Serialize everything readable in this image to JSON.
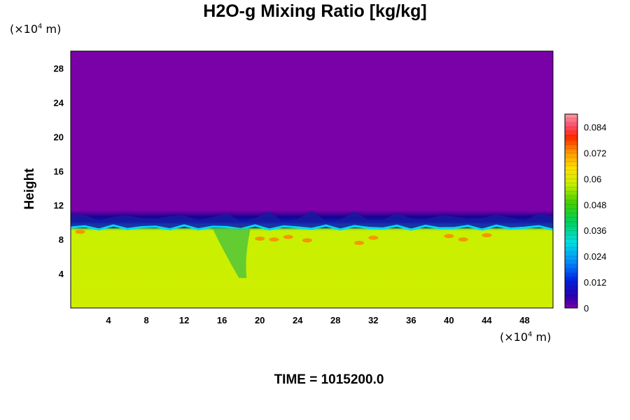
{
  "chart_data": {
    "type": "heatmap",
    "title": "H2O-g Mixing Ratio [kg/kg]",
    "ylabel": "Height",
    "xlabel": "",
    "y_unit": "(×10",
    "y_unit_exp": "4",
    "y_unit_tail": " m)",
    "x_unit": "(×10",
    "x_unit_exp": "4",
    "x_unit_tail": " m)",
    "xlim": [
      0,
      51
    ],
    "ylim": [
      0,
      30
    ],
    "x_ticks": [
      "4",
      "8",
      "12",
      "16",
      "20",
      "24",
      "28",
      "32",
      "36",
      "40",
      "44",
      "48"
    ],
    "y_ticks": [
      "4",
      "8",
      "12",
      "16",
      "20",
      "24",
      "28"
    ],
    "colorbar": {
      "range": [
        0,
        0.09
      ],
      "ticks": [
        "0",
        "0.012",
        "0.024",
        "0.036",
        "0.048",
        "0.06",
        "0.072",
        "0.084"
      ]
    },
    "field_summary": {
      "lower_layer_value": 0.062,
      "upper_layer_value": 0.0,
      "interface_height": 9.5
    }
  },
  "footer": {
    "time_label": "TIME = 1015200.0"
  }
}
